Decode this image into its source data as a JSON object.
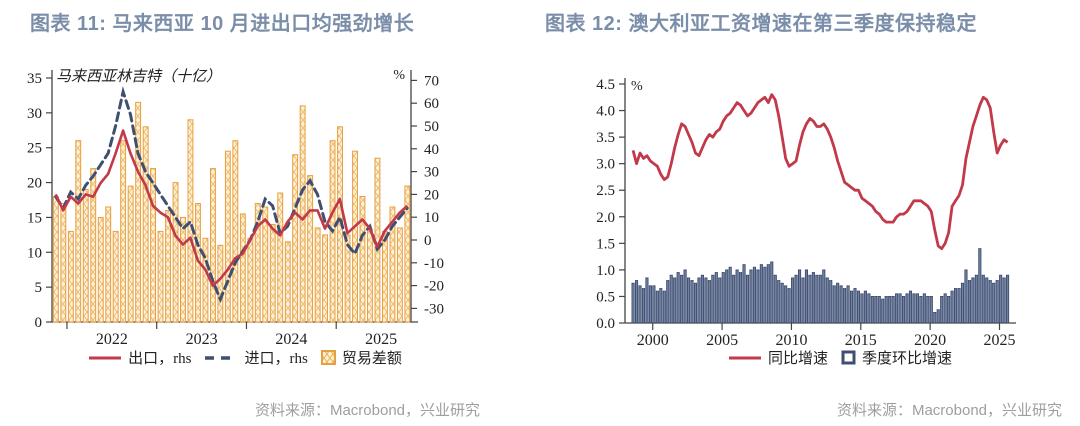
{
  "page": {
    "background": "#ffffff"
  },
  "colors": {
    "title": "#7b8ea9",
    "export_line": "#c2394a",
    "import_line": "#3f4f70",
    "trade_bar_stroke": "#e6a041",
    "trade_bar_fill": "#fdf1d8",
    "trade_bar_hatch": "#f2bc72",
    "wage_bar_fill": "#71809e",
    "wage_bar_stroke": "#35466b",
    "axis": "#444444",
    "source_text": "#9e9e9e"
  },
  "left_panel": {
    "title": "图表 11: 马来西亚 10 月进出口均强劲增长",
    "source": "资料来源：Macrobond，兴业研究",
    "legend": [
      {
        "label": "出口，rhs",
        "marker": "red-solid-line"
      },
      {
        "label": "进口，rhs",
        "marker": "navy-dashed-line"
      },
      {
        "label": "贸易差额",
        "marker": "orange-hatched-square"
      }
    ]
  },
  "right_panel": {
    "title": "图表 12: 澳大利亚工资增速在第三季度保持稳定",
    "source": "资料来源：Macrobond，兴业研究",
    "legend": [
      {
        "label": "同比增速",
        "marker": "red-solid-line"
      },
      {
        "label": "季度环比增速",
        "marker": "navy-outlined-square"
      }
    ]
  },
  "chart_data": [
    {
      "type": "bar+line combo",
      "title": "图表 11: 马来西亚 10 月进出口均强劲增长",
      "axis_label_left": "马来西亚林吉特（十亿）",
      "axis_label_right": "%",
      "freq": "monthly",
      "x_start": "2021-11",
      "x_tick_labels": [
        "2022",
        "2023",
        "2024",
        "2025"
      ],
      "ylim_left": [
        0,
        35
      ],
      "yticks_left": [
        0,
        5,
        10,
        15,
        20,
        25,
        30,
        35
      ],
      "ylim_right": [
        -30,
        70
      ],
      "yticks_right": [
        -30,
        -20,
        -10,
        0,
        10,
        20,
        30,
        40,
        50,
        60,
        70
      ],
      "grid": false,
      "legend_position": "bottom",
      "series": [
        {
          "name": "贸易差额",
          "type": "bar",
          "axis": "left",
          "values": [
            18,
            17,
            13,
            26,
            19,
            22,
            15,
            16.5,
            13,
            26,
            19.5,
            31.5,
            28,
            22,
            13,
            16,
            20,
            15,
            29,
            17,
            12,
            22,
            11,
            24.5,
            26,
            15.5,
            12,
            17,
            16.5,
            14,
            18.5,
            11.5,
            24,
            31,
            21,
            13.5,
            12.5,
            26,
            28,
            12.5,
            24.5,
            18,
            13,
            23.5,
            13,
            16.5,
            13.5,
            19.5
          ]
        },
        {
          "name": "出口，rhs",
          "type": "line",
          "axis": "right",
          "values": [
            20,
            13,
            19,
            16,
            20,
            19,
            25,
            29,
            38,
            48,
            38,
            30,
            24,
            15,
            12,
            10,
            2,
            -2,
            1,
            -9,
            -13,
            -20,
            -17,
            -13,
            -8,
            -6,
            0,
            6,
            9,
            5,
            2,
            8,
            12,
            9,
            13,
            13,
            5,
            12,
            18,
            3,
            6,
            9,
            5,
            -3,
            4,
            8,
            12,
            15
          ]
        },
        {
          "name": "进口，rhs",
          "type": "dashed-line",
          "axis": "right",
          "values": [
            19,
            14,
            21,
            18,
            24,
            28,
            33,
            38,
            50,
            65,
            55,
            38,
            30,
            25,
            20,
            15,
            10,
            5,
            8,
            -2,
            -8,
            -18,
            -26,
            -18,
            -10,
            -5,
            0,
            8,
            18,
            15,
            3,
            6,
            14,
            22,
            26,
            20,
            8,
            4,
            10,
            -2,
            -6,
            2,
            6,
            -4,
            0,
            6,
            10,
            14
          ]
        }
      ]
    },
    {
      "type": "bar+line combo",
      "title": "图表 12: 澳大利亚工资增速在第三季度保持稳定",
      "axis_label_left": "%",
      "freq": "quarterly",
      "x_start": "1998-Q3",
      "x_tick_labels": [
        "2000",
        "2005",
        "2010",
        "2015",
        "2020",
        "2025"
      ],
      "ylim": [
        0,
        4.5
      ],
      "yticks": [
        0.0,
        0.5,
        1.0,
        1.5,
        2.0,
        2.5,
        3.0,
        3.5,
        4.0,
        4.5
      ],
      "grid": false,
      "legend_position": "bottom",
      "series": [
        {
          "name": "季度环比增速",
          "type": "bar",
          "values": [
            0.75,
            0.8,
            0.7,
            0.65,
            0.85,
            0.7,
            0.7,
            0.6,
            0.65,
            0.6,
            0.8,
            0.9,
            0.85,
            0.95,
            0.9,
            1.0,
            0.85,
            0.8,
            0.75,
            0.85,
            0.9,
            0.85,
            0.8,
            0.9,
            0.95,
            0.85,
            0.95,
            1.0,
            1.05,
            0.9,
            1.0,
            0.95,
            1.1,
            0.9,
            1.0,
            1.05,
            1.0,
            1.1,
            1.05,
            1.1,
            1.15,
            0.9,
            0.8,
            0.75,
            0.7,
            0.65,
            0.85,
            0.9,
            1.0,
            0.85,
            1.0,
            0.9,
            0.95,
            0.9,
            0.9,
            1.0,
            0.85,
            0.8,
            0.7,
            0.75,
            0.7,
            0.65,
            0.7,
            0.6,
            0.65,
            0.6,
            0.55,
            0.6,
            0.55,
            0.5,
            0.5,
            0.5,
            0.45,
            0.5,
            0.5,
            0.5,
            0.55,
            0.55,
            0.5,
            0.55,
            0.6,
            0.55,
            0.55,
            0.5,
            0.55,
            0.5,
            0.5,
            0.2,
            0.25,
            0.5,
            0.55,
            0.5,
            0.6,
            0.65,
            0.65,
            0.75,
            1.0,
            0.8,
            0.85,
            0.9,
            1.4,
            0.9,
            0.85,
            0.8,
            0.75,
            0.8,
            0.9,
            0.85,
            0.9
          ]
        },
        {
          "name": "同比增速",
          "type": "line",
          "values": [
            3.25,
            3.0,
            3.2,
            3.1,
            3.15,
            3.05,
            3.0,
            2.95,
            2.8,
            2.7,
            2.75,
            3.0,
            3.3,
            3.55,
            3.75,
            3.7,
            3.55,
            3.4,
            3.2,
            3.15,
            3.3,
            3.45,
            3.55,
            3.5,
            3.6,
            3.65,
            3.8,
            3.9,
            3.95,
            4.05,
            4.15,
            4.1,
            4.0,
            3.9,
            3.95,
            4.05,
            4.15,
            4.2,
            4.25,
            4.15,
            4.3,
            4.2,
            3.9,
            3.5,
            3.1,
            2.95,
            3.0,
            3.05,
            3.35,
            3.6,
            3.75,
            3.85,
            3.8,
            3.7,
            3.7,
            3.75,
            3.65,
            3.5,
            3.3,
            3.05,
            2.85,
            2.65,
            2.6,
            2.55,
            2.5,
            2.5,
            2.35,
            2.3,
            2.25,
            2.2,
            2.1,
            2.05,
            1.95,
            1.9,
            1.9,
            1.9,
            2.0,
            2.05,
            2.05,
            2.1,
            2.2,
            2.3,
            2.3,
            2.3,
            2.25,
            2.2,
            2.1,
            1.75,
            1.45,
            1.4,
            1.5,
            1.7,
            2.2,
            2.3,
            2.4,
            2.6,
            3.1,
            3.4,
            3.7,
            3.9,
            4.1,
            4.25,
            4.2,
            4.05,
            3.6,
            3.2,
            3.35,
            3.45,
            3.4
          ]
        }
      ]
    }
  ]
}
